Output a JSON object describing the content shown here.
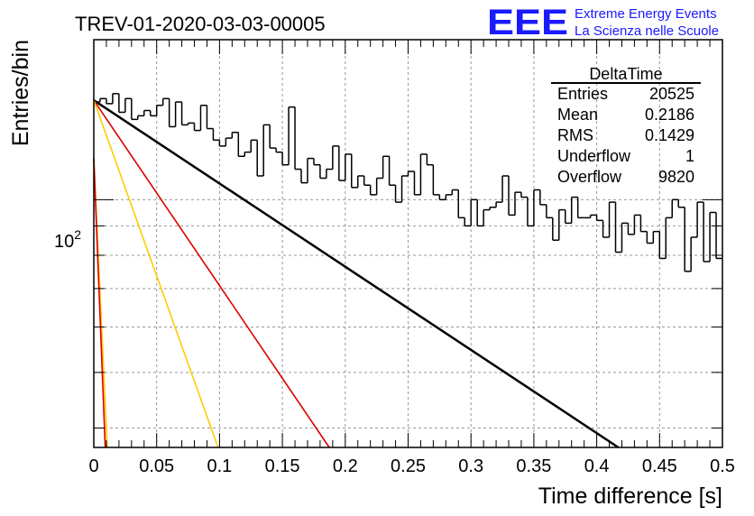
{
  "chart_data": {
    "type": "histogram",
    "title": "TREV-01-2020-03-03-00005",
    "xlabel": "Time difference [s]",
    "ylabel": "Entries/bin",
    "xlim": [
      0,
      0.5
    ],
    "ylim": [
      37,
      190
    ],
    "yscale": "log",
    "grid": true,
    "x_ticks": [
      "0",
      "0.05",
      "0.1",
      "0.15",
      "0.2",
      "0.25",
      "0.3",
      "0.35",
      "0.4",
      "0.45",
      "0.5"
    ],
    "y_tick_label": {
      "base": "10",
      "exponent": "2",
      "value": 100
    },
    "bin_width": 0.005,
    "values": [
      148,
      150,
      147,
      153,
      142,
      150,
      138,
      140,
      143,
      140,
      146,
      150,
      134,
      148,
      135,
      136,
      132,
      146,
      133,
      127,
      124,
      128,
      131,
      119,
      121,
      127,
      110,
      135,
      123,
      121,
      115,
      145,
      113,
      107,
      118,
      115,
      109,
      113,
      124,
      108,
      120,
      105,
      110,
      106,
      102,
      109,
      119,
      106,
      99,
      110,
      112,
      102,
      120,
      115,
      102,
      100,
      102,
      104,
      93,
      90,
      100,
      90,
      96,
      97,
      99,
      110,
      94,
      103,
      101,
      90,
      104,
      98,
      93,
      85,
      96,
      91,
      101,
      93,
      93,
      94,
      92,
      86,
      99,
      81,
      91,
      87,
      94,
      88,
      84,
      88,
      79,
      93,
      100,
      97,
      75,
      86,
      99,
      78,
      95,
      79
    ],
    "fit_lines": [
      {
        "color": "#000000",
        "y_at_0": 149,
        "slope_per_unit": -1.45
      },
      {
        "color": "#dd0000",
        "y_at_0": 149,
        "slope_per_unit": -3.23
      },
      {
        "color": "#ffcc00",
        "y_at_0": 149,
        "slope_per_unit": -6.12
      },
      {
        "color": "#ffcc00",
        "y_at_0": 118,
        "slope_per_unit": -47.0
      },
      {
        "color": "#dd0000",
        "y_at_0": 118,
        "slope_per_unit": -55.4
      }
    ],
    "stats_box": {
      "title": "DeltaTime",
      "rows": [
        {
          "label": "Entries",
          "value": "20525"
        },
        {
          "label": "Mean",
          "value": "0.2186"
        },
        {
          "label": "RMS",
          "value": "0.1429"
        },
        {
          "label": "Underflow",
          "value": "1"
        },
        {
          "label": "Overflow",
          "value": "9820"
        }
      ]
    }
  },
  "logo": {
    "mark": "EEE",
    "line1": "Extreme Energy Events",
    "line2": "La Scienza nelle Scuole",
    "color": "#1a1aff"
  }
}
